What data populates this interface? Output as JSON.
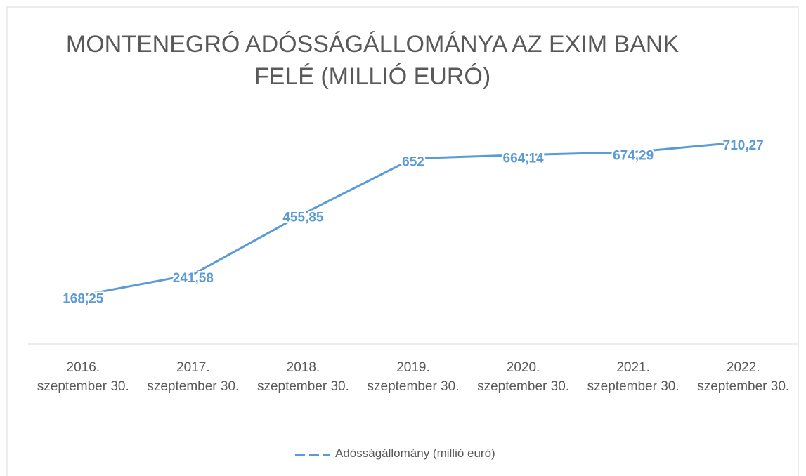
{
  "chart_data": {
    "type": "line",
    "title": "MONTENEGRÓ ADÓSSÁGÁLLOMÁNYA AZ EXIM BANK FELÉ (MILLIÓ EURÓ)",
    "categories": [
      "2016. szeptember 30.",
      "2017. szeptember 30.",
      "2018. szeptember 30.",
      "2019. szeptember 30.",
      "2020. szeptember 30.",
      "2021. szeptember 30.",
      "2022. szeptember 30."
    ],
    "series": [
      {
        "name": "Adósságállomány (millió euró)",
        "color": "#5b9bd5",
        "values": [
          168.25,
          241.58,
          455.85,
          652,
          664.14,
          674.29,
          710.27
        ],
        "value_labels": [
          "168,25",
          "241,58",
          "455,85",
          "652",
          "664,14",
          "674,29",
          "710,27"
        ]
      }
    ],
    "ylim": [
      0,
      800
    ],
    "legend": "bottom"
  }
}
